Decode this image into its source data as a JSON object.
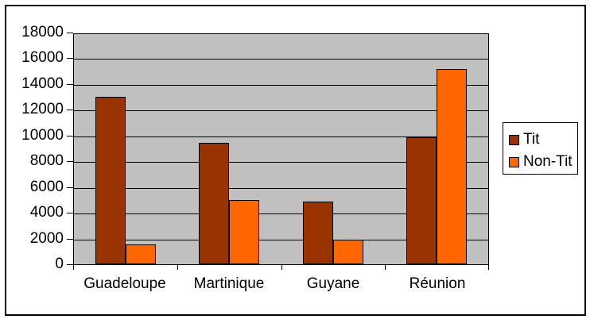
{
  "chart_data": {
    "type": "bar",
    "title": "",
    "xlabel": "",
    "ylabel": "",
    "categories": [
      "Guadeloupe",
      "Martinique",
      "Guyane",
      "Réunion"
    ],
    "series": [
      {
        "name": "Tit",
        "color": "#993300",
        "values": [
          13100,
          9500,
          4900,
          9900
        ]
      },
      {
        "name": "Non-Tit",
        "color": "#FF6600",
        "values": [
          1550,
          5050,
          1900,
          15250
        ]
      }
    ],
    "ylim": [
      0,
      18000
    ],
    "ytick_step": 2000,
    "ytick_labels": [
      "0",
      "2000",
      "4000",
      "6000",
      "8000",
      "10000",
      "12000",
      "14000",
      "16000",
      "18000"
    ],
    "grid": true,
    "legend_position": "right",
    "colors": {
      "plot_bg": "#C0C0C0",
      "gridline": "#000000",
      "bar_border": "#000000",
      "frame_border": "#000000",
      "background": "#FFFFFF"
    }
  }
}
